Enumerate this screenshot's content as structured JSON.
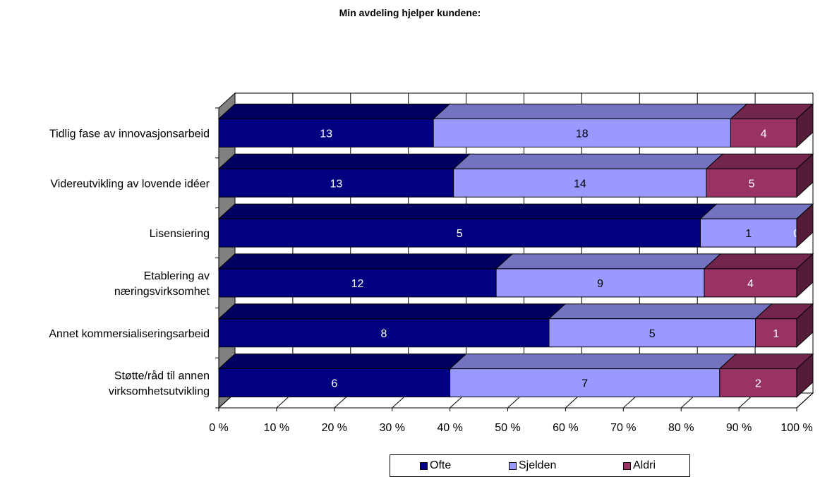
{
  "chart_data": {
    "type": "bar",
    "orientation": "horizontal",
    "stacked": "percent",
    "three_d": true,
    "title": "Min avdeling hjelper kundene:",
    "categories": [
      [
        "Tidlig fase av innovasjonsarbeid"
      ],
      [
        "Videreutvikling av lovende idéer"
      ],
      [
        "Lisensiering"
      ],
      [
        "Etablering av",
        "næringsvirksomhet"
      ],
      [
        "Annet kommersialiseringsarbeid"
      ],
      [
        "Støtte/råd til annen",
        "virksomhetsutvikling"
      ]
    ],
    "series": [
      {
        "name": "Ofte",
        "color": "#000080",
        "values": [
          13,
          13,
          5,
          12,
          8,
          6
        ]
      },
      {
        "name": "Sjelden",
        "color": "#9999ff",
        "values": [
          18,
          14,
          1,
          9,
          5,
          7
        ]
      },
      {
        "name": "Aldri",
        "color": "#993366",
        "values": [
          4,
          5,
          0,
          4,
          1,
          2
        ]
      }
    ],
    "x_ticks": [
      "0 %",
      "10 %",
      "20 %",
      "30 %",
      "40 %",
      "50 %",
      "60 %",
      "70 %",
      "80 %",
      "90 %",
      "100 %"
    ],
    "xlim": [
      0,
      100
    ],
    "grid": true,
    "legend_position": "bottom"
  }
}
